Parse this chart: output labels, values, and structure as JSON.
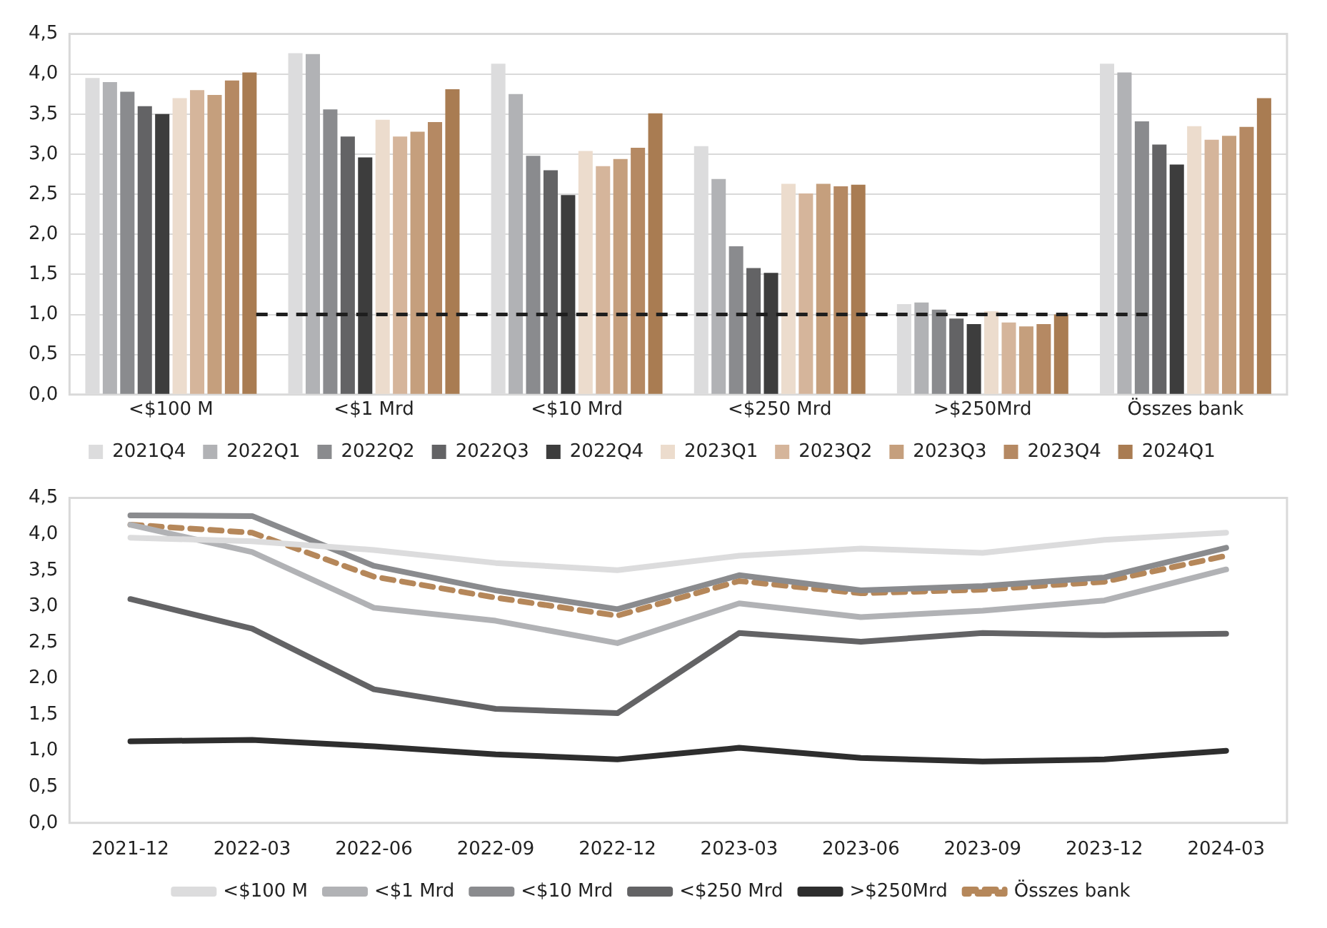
{
  "chart_data": [
    {
      "type": "bar",
      "categories": [
        "<$100 M",
        "<$1 Mrd",
        "<$10 Mrd",
        "<$250 Mrd",
        ">$250Mrd",
        "Összes bank"
      ],
      "series": [
        {
          "name": "2021Q4",
          "color": "#dcdcdd",
          "values": [
            3.95,
            4.26,
            4.13,
            3.1,
            1.13,
            4.13
          ]
        },
        {
          "name": "2022Q1",
          "color": "#b1b2b5",
          "values": [
            3.9,
            4.25,
            3.75,
            2.69,
            1.15,
            4.02
          ]
        },
        {
          "name": "2022Q2",
          "color": "#8a8b8e",
          "values": [
            3.78,
            3.56,
            2.98,
            1.85,
            1.06,
            3.41
          ]
        },
        {
          "name": "2022Q3",
          "color": "#636365",
          "values": [
            3.6,
            3.22,
            2.8,
            1.58,
            0.95,
            3.12
          ]
        },
        {
          "name": "2022Q4",
          "color": "#3d3d3d",
          "values": [
            3.5,
            2.96,
            2.49,
            1.52,
            0.88,
            2.87
          ]
        },
        {
          "name": "2023Q1",
          "color": "#ecdccd",
          "values": [
            3.7,
            3.43,
            3.04,
            2.63,
            1.04,
            3.35
          ]
        },
        {
          "name": "2023Q2",
          "color": "#d5b59b",
          "values": [
            3.8,
            3.22,
            2.85,
            2.51,
            0.9,
            3.18
          ]
        },
        {
          "name": "2023Q3",
          "color": "#c59f7d",
          "values": [
            3.74,
            3.28,
            2.94,
            2.63,
            0.85,
            3.23
          ]
        },
        {
          "name": "2023Q4",
          "color": "#b58963",
          "values": [
            3.92,
            3.4,
            3.08,
            2.6,
            0.88,
            3.34
          ]
        },
        {
          "name": "2024Q1",
          "color": "#a97c52",
          "values": [
            4.02,
            3.81,
            3.51,
            2.62,
            1.0,
            3.7
          ]
        }
      ],
      "ylim": [
        0,
        4.5
      ],
      "yticks": [
        {
          "value": 0,
          "label": "0,0"
        },
        {
          "value": 0.5,
          "label": "0,5"
        },
        {
          "value": 1,
          "label": "1,0"
        },
        {
          "value": 1.5,
          "label": "1,5"
        },
        {
          "value": 2,
          "label": "2,0"
        },
        {
          "value": 2.5,
          "label": "2,5"
        },
        {
          "value": 3,
          "label": "3,0"
        },
        {
          "value": 3.5,
          "label": "3,5"
        },
        {
          "value": 4,
          "label": "4,0"
        },
        {
          "value": 4.5,
          "label": "4,5"
        }
      ],
      "ref_lines": [
        {
          "axis": "y",
          "value": 1,
          "color": "#1e1e1e",
          "line_style": "dashed"
        }
      ],
      "grid": "y",
      "legend": "bottom"
    },
    {
      "type": "line",
      "categories": [
        "2021-12",
        "2022-03",
        "2022-06",
        "2022-09",
        "2022-12",
        "2023-03",
        "2023-06",
        "2023-09",
        "2023-12",
        "2024-03"
      ],
      "series": [
        {
          "name": "<$100 M",
          "color": "#dcdcdd",
          "values": [
            3.95,
            3.9,
            3.78,
            3.6,
            3.5,
            3.7,
            3.8,
            3.74,
            3.92,
            4.02
          ]
        },
        {
          "name": "<$1 Mrd",
          "color": "#b1b2b5",
          "values": [
            4.13,
            3.75,
            2.98,
            2.8,
            2.49,
            3.04,
            2.85,
            2.94,
            3.08,
            3.51
          ]
        },
        {
          "name": "<$10 Mrd",
          "color": "#8a8b8e",
          "values": [
            4.26,
            4.25,
            3.56,
            3.22,
            2.96,
            3.43,
            3.22,
            3.28,
            3.4,
            3.81
          ]
        },
        {
          "name": "<$250 Mrd",
          "color": "#636365",
          "values": [
            3.1,
            2.69,
            1.85,
            1.58,
            1.52,
            2.63,
            2.51,
            2.63,
            2.6,
            2.62
          ]
        },
        {
          "name": ">$250Mrd",
          "color": "#2e2e2e",
          "values": [
            1.13,
            1.15,
            1.06,
            0.95,
            0.88,
            1.04,
            0.9,
            0.85,
            0.88,
            1.0
          ]
        },
        {
          "name": "Összes bank",
          "color": "#b5875a",
          "line_style": "dashed",
          "values": [
            4.13,
            4.02,
            3.41,
            3.12,
            2.87,
            3.35,
            3.18,
            3.23,
            3.34,
            3.7
          ]
        }
      ],
      "ylim": [
        0,
        4.5
      ],
      "yticks": [
        {
          "value": 0,
          "label": "0,0"
        },
        {
          "value": 0.5,
          "label": "0,5"
        },
        {
          "value": 1,
          "label": "1,0"
        },
        {
          "value": 1.5,
          "label": "1,5"
        },
        {
          "value": 2,
          "label": "2,0"
        },
        {
          "value": 2.5,
          "label": "2,5"
        },
        {
          "value": 3,
          "label": "3,0"
        },
        {
          "value": 3.5,
          "label": "3,5"
        },
        {
          "value": 4,
          "label": "4,0"
        },
        {
          "value": 4.5,
          "label": "4,5"
        }
      ],
      "legend": "bottom",
      "marker": "none"
    }
  ]
}
